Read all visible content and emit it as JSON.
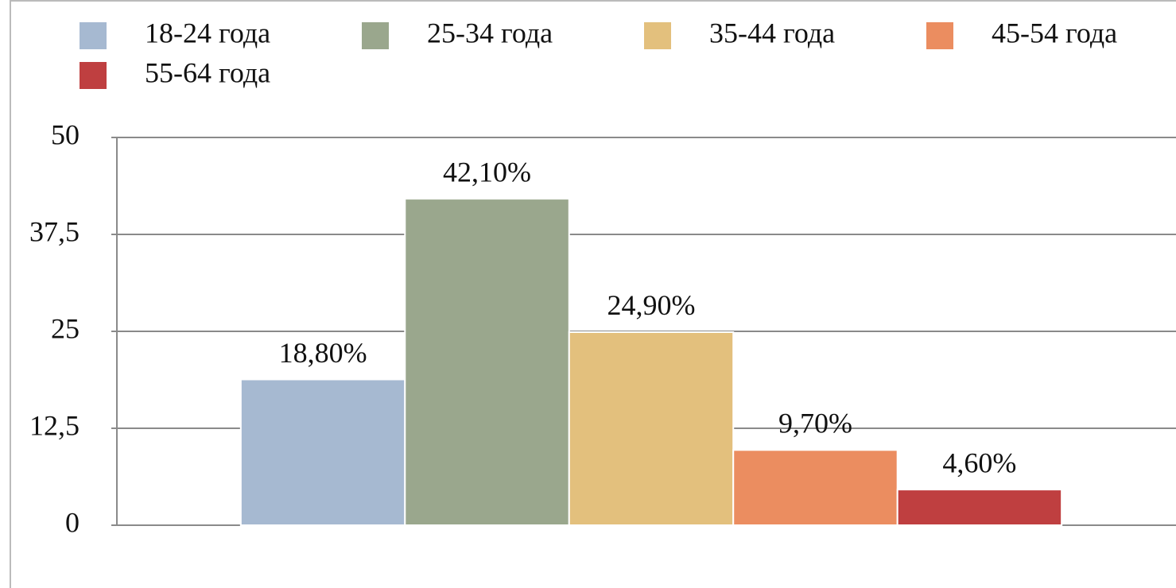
{
  "chart_data": {
    "type": "bar",
    "categories": [
      null
    ],
    "series": [
      {
        "name": "18-24 года",
        "color": "#a6b9d1",
        "values": [
          18.8
        ],
        "value_labels": [
          "18,80%"
        ]
      },
      {
        "name": "25-34 года",
        "color": "#9aa78d",
        "values": [
          42.1
        ],
        "value_labels": [
          "42,10%"
        ]
      },
      {
        "name": "35-44 года",
        "color": "#e3c07d",
        "values": [
          24.9
        ],
        "value_labels": [
          "24,90%"
        ]
      },
      {
        "name": "45-54 года",
        "color": "#eb8d60",
        "values": [
          9.7
        ],
        "value_labels": [
          "9,70%"
        ]
      },
      {
        "name": "55-64 года",
        "color": "#bf3f40",
        "values": [
          4.6
        ],
        "value_labels": [
          "4,60%"
        ]
      }
    ],
    "ylim": [
      0,
      50
    ],
    "yticks": [
      0,
      {
        "value": 12.5,
        "label": "12,5"
      },
      25,
      {
        "value": 37.5,
        "label": "37,5"
      },
      50
    ],
    "grid": true,
    "legend": "top"
  }
}
